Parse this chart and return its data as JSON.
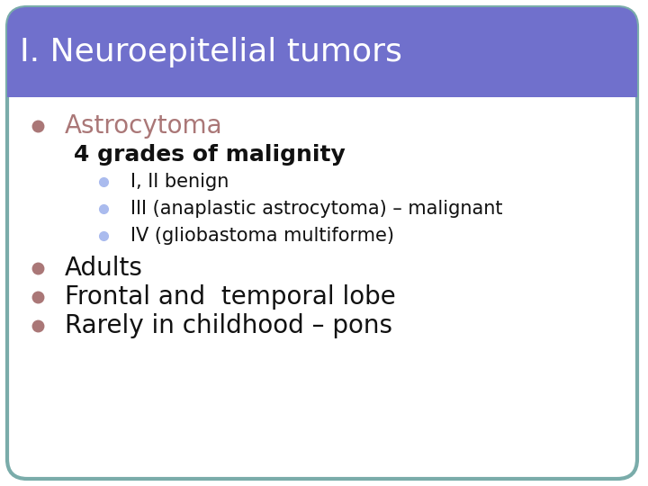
{
  "title": "I. Neuroepitelial tumors",
  "title_bg_color": "#7070cc",
  "title_text_color": "#ffffff",
  "slide_bg_color": "#ffffff",
  "slide_border_color": "#7aacaa",
  "title_font_size": 26,
  "bullet1_text": "Astrocytoma",
  "bullet1_color": "#aa7777",
  "bullet1_marker_color": "#aa7777",
  "bullet1_font_size": 20,
  "sub_text": "4 grades of malignity",
  "sub_text_color": "#111111",
  "sub_font_size": 18,
  "sub_bullets": [
    "I, II benign",
    "III (anaplastic astrocytoma) – malignant",
    "IV (gliobastoma multiforme)"
  ],
  "sub_bullet_color": "#aabbee",
  "sub_bullet_text_color": "#111111",
  "sub_text_font_size": 15,
  "main_bullets": [
    "Adults",
    "Frontal and  temporal lobe",
    "Rarely in childhood – pons"
  ],
  "main_bullet_color": "#aa7777",
  "main_bullet_text_color": "#111111",
  "main_font_size": 20,
  "divider_color": "#ffffff"
}
